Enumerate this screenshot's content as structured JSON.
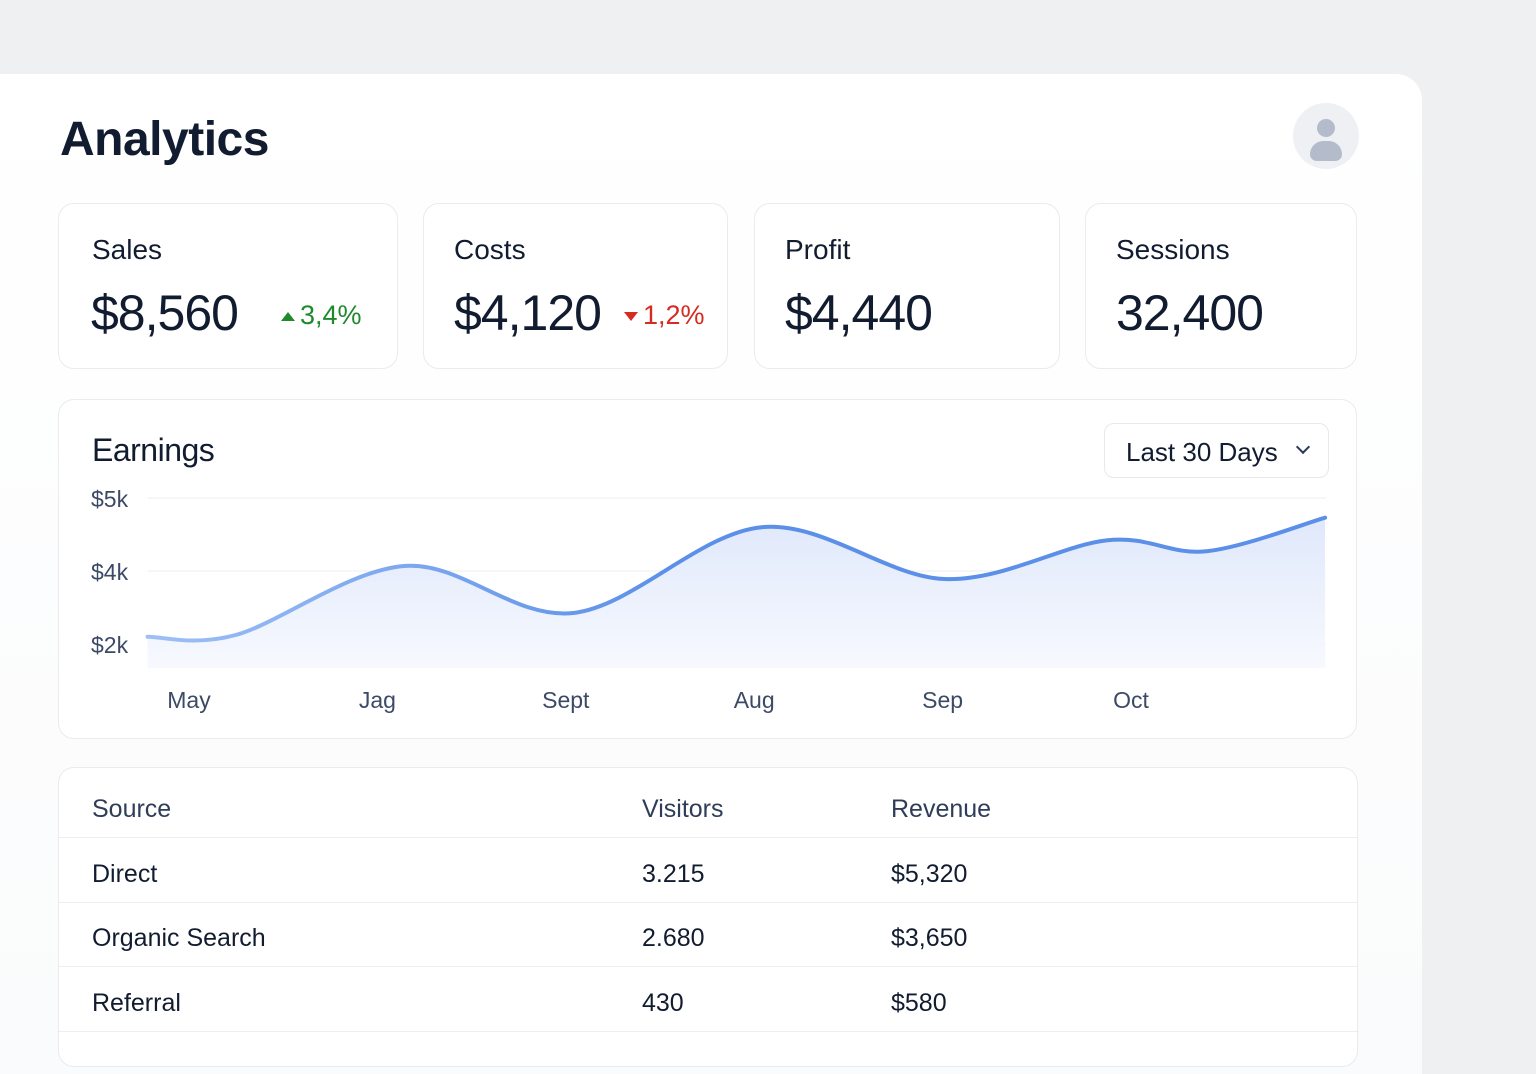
{
  "header": {
    "title": "Analytics",
    "avatar_icon": "user-icon"
  },
  "kpis": [
    {
      "label": "Sales",
      "value": "$8,560",
      "delta": "3,4%",
      "direction": "up",
      "color": "#1f8a2c"
    },
    {
      "label": "Costs",
      "value": "$4,120",
      "delta": "1,2%",
      "direction": "down",
      "color": "#d42b22"
    },
    {
      "label": "Profit",
      "value": "$4,440"
    },
    {
      "label": "Sessions",
      "value": "32,400"
    }
  ],
  "earnings": {
    "title": "Earnings",
    "range_select": "Last 30 Days"
  },
  "chart_data": {
    "type": "area",
    "title": "Earnings",
    "y_ticks": [
      {
        "label": "$5k",
        "value": 5
      },
      {
        "label": "$4k",
        "value": 4
      },
      {
        "label": "$2k",
        "value": 2
      }
    ],
    "x_labels": [
      "May",
      "Jag",
      "Sept",
      "Aug",
      "Sep",
      "Oct"
    ],
    "grid": true,
    "line_color": "#5b8fe8",
    "series": [
      {
        "points": [
          [
            -0.22,
            2.2
          ],
          [
            0.25,
            2.25
          ],
          [
            1.15,
            4.07
          ],
          [
            2.04,
            2.85
          ],
          [
            3.04,
            4.6
          ],
          [
            4.01,
            3.78
          ],
          [
            4.87,
            4.42
          ],
          [
            5.4,
            4.27
          ],
          [
            6.03,
            4.73
          ]
        ]
      }
    ]
  },
  "table": {
    "headers": [
      "Source",
      "Visitors",
      "Revenue"
    ],
    "rows": [
      [
        "Direct",
        "3.215",
        "$5,320"
      ],
      [
        "Organic Search",
        "2.680",
        "$3,650"
      ],
      [
        "Referral",
        "430",
        "$580"
      ]
    ]
  }
}
